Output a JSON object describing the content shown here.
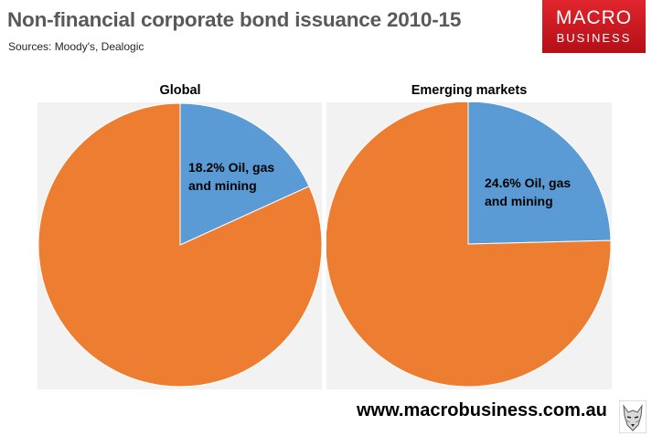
{
  "header": {
    "title": "Non-financial corporate bond issuance 2010-15",
    "subtitle": "Sources: Moody's, Dealogic"
  },
  "logo": {
    "line1": "MACRO",
    "line2": "BUSINESS"
  },
  "footer": {
    "url": "www.macrobusiness.com.au",
    "mascot_icon": "wolf-icon"
  },
  "colors": {
    "oil_gas_mining": "#5b9bd5",
    "other": "#ed7d31",
    "panel_bg": "#f2f2f2"
  },
  "chart_data": [
    {
      "type": "pie",
      "title": "Global",
      "slices": [
        {
          "label": "18.2% Oil, gas and mining",
          "label_lines": [
            "18.2% Oil, gas",
            "and mining"
          ],
          "value": 18.2
        },
        {
          "label": "",
          "value": 81.8
        }
      ]
    },
    {
      "type": "pie",
      "title": "Emerging markets",
      "slices": [
        {
          "label": "24.6% Oil, gas and mining",
          "label_lines": [
            "24.6% Oil, gas",
            "and mining"
          ],
          "value": 24.6
        },
        {
          "label": "",
          "value": 75.4
        }
      ]
    }
  ]
}
